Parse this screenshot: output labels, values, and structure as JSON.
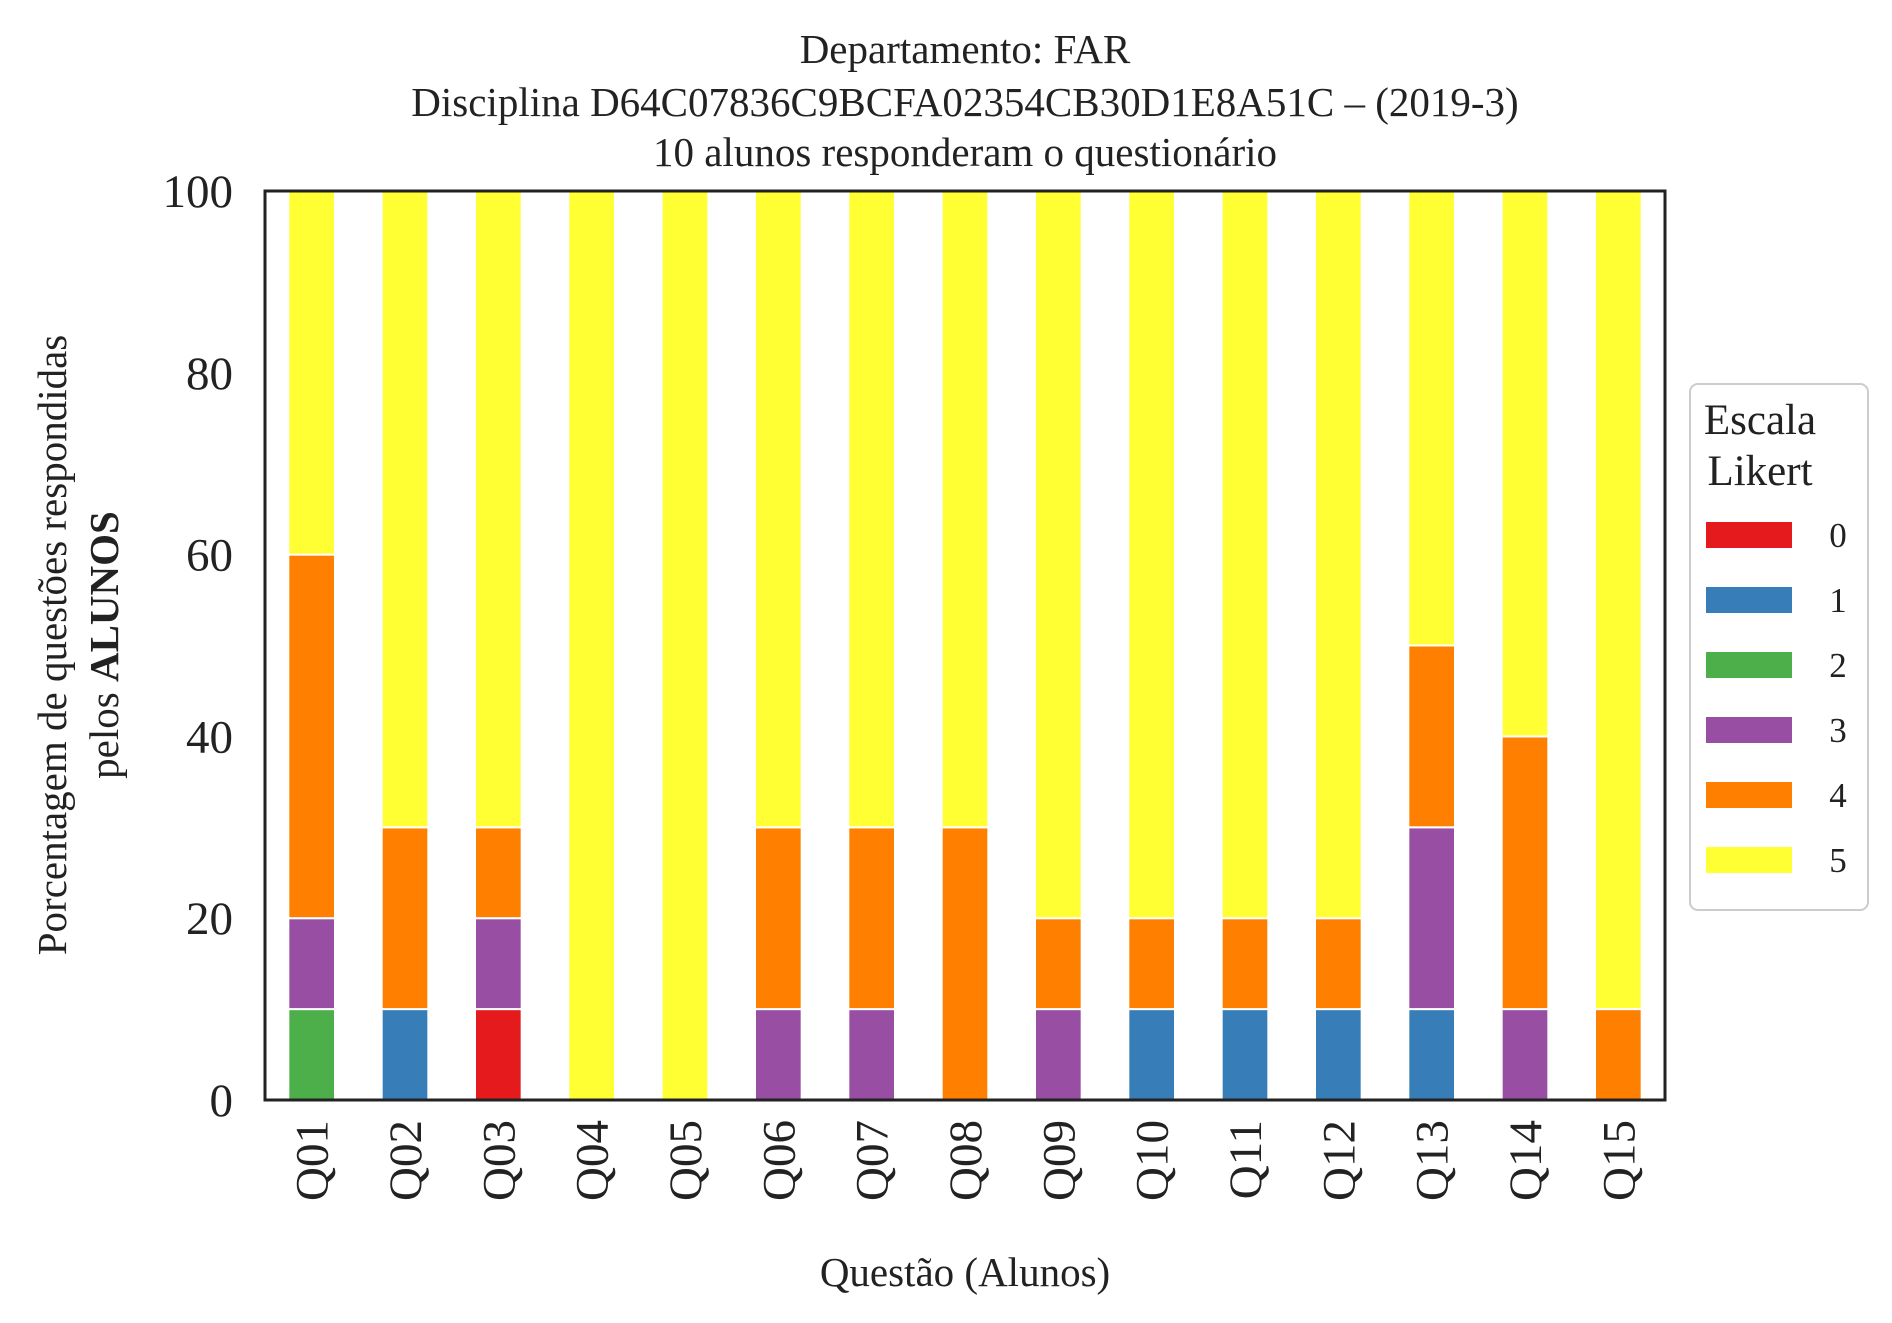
{
  "chart_data": {
    "type": "bar",
    "stacked": true,
    "title": [
      "Departamento: FAR",
      "Disciplina D64C07836C9BCFA02354CB30D1E8A51C – (2019-3)",
      "10 alunos responderam o questionário"
    ],
    "xlabel": "Questão (Alunos)",
    "ylabel_line1": "Porcentagem de questões respondidas",
    "ylabel_line2_prefix": "pelos ",
    "ylabel_line2_bold": "ALUNOS",
    "ylim": [
      0,
      100
    ],
    "yticks": [
      "0",
      "20",
      "40",
      "60",
      "80",
      "100"
    ],
    "categories": [
      "Q01",
      "Q02",
      "Q03",
      "Q04",
      "Q05",
      "Q06",
      "Q07",
      "Q08",
      "Q09",
      "Q10",
      "Q11",
      "Q12",
      "Q13",
      "Q14",
      "Q15"
    ],
    "series": [
      {
        "name": "0",
        "color": "#e41a1c",
        "values": [
          0,
          0,
          10,
          0,
          0,
          0,
          0,
          0,
          0,
          0,
          0,
          0,
          0,
          0,
          0
        ]
      },
      {
        "name": "1",
        "color": "#377eb8",
        "values": [
          0,
          10,
          0,
          0,
          0,
          0,
          0,
          0,
          0,
          10,
          10,
          10,
          10,
          0,
          0
        ]
      },
      {
        "name": "2",
        "color": "#4daf4a",
        "values": [
          10,
          0,
          0,
          0,
          0,
          0,
          0,
          0,
          0,
          0,
          0,
          0,
          0,
          0,
          0
        ]
      },
      {
        "name": "3",
        "color": "#984ea3",
        "values": [
          10,
          0,
          10,
          0,
          0,
          10,
          10,
          0,
          10,
          0,
          0,
          0,
          20,
          10,
          0
        ]
      },
      {
        "name": "4",
        "color": "#ff7f00",
        "values": [
          40,
          20,
          10,
          0,
          0,
          20,
          20,
          30,
          10,
          10,
          10,
          10,
          20,
          30,
          10
        ]
      },
      {
        "name": "5",
        "color": "#ffff33",
        "values": [
          40,
          70,
          70,
          100,
          100,
          70,
          70,
          70,
          80,
          80,
          80,
          80,
          50,
          60,
          90
        ]
      }
    ],
    "legend": {
      "title_line1": "Escala",
      "title_line2": "Likert",
      "placement": "center-right"
    },
    "grid": false
  }
}
